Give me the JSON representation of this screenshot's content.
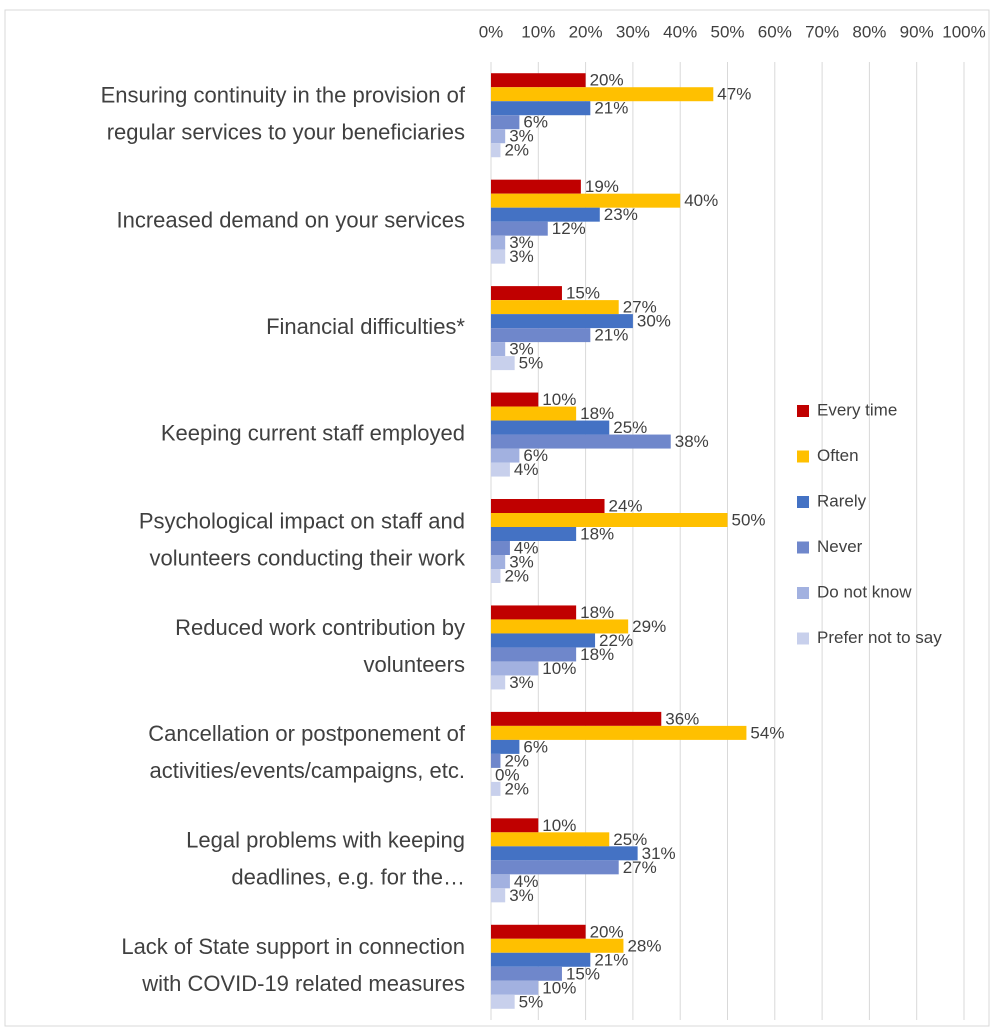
{
  "chart_data": {
    "type": "bar",
    "orientation": "horizontal",
    "categories": [
      [
        "Ensuring continuity in the provision of",
        "regular services to your beneficiaries"
      ],
      [
        "Increased demand on your services"
      ],
      [
        "Financial difficulties*"
      ],
      [
        "Keeping current staff employed"
      ],
      [
        "Psychological impact on staff and",
        "volunteers conducting their work"
      ],
      [
        "Reduced work contribution by",
        "volunteers"
      ],
      [
        "Cancellation or postponement of",
        "activities/events/campaigns, etc."
      ],
      [
        "Legal problems with keeping",
        "deadlines, e.g. for the…"
      ],
      [
        "Lack of State support in connection",
        "with COVID-19 related measures"
      ]
    ],
    "series": [
      {
        "name": "Every time",
        "color": "#c00000",
        "values": [
          20,
          19,
          15,
          10,
          24,
          18,
          36,
          10,
          20
        ],
        "value_labels": [
          "20%",
          "19%",
          "15%",
          "10%",
          "24%",
          "18%",
          "36%",
          "10%",
          "20%"
        ]
      },
      {
        "name": "Often",
        "color": "#ffc000",
        "values": [
          47,
          40,
          27,
          18,
          50,
          29,
          54,
          25,
          28
        ],
        "value_labels": [
          "47%",
          "40%",
          "27%",
          "18%",
          "50%",
          "29%",
          "54%",
          "25%",
          "28%"
        ]
      },
      {
        "name": "Rarely",
        "color": "#4472c4",
        "values": [
          21,
          23,
          30,
          25,
          18,
          22,
          6,
          31,
          21
        ],
        "value_labels": [
          "21%",
          "23%",
          "30%",
          "25%",
          "18%",
          "22%",
          "6%",
          "31%",
          "21%"
        ]
      },
      {
        "name": "Never",
        "color": "#6f87cb",
        "values": [
          6,
          12,
          21,
          38,
          4,
          18,
          2,
          27,
          15
        ],
        "value_labels": [
          "6%",
          "12%",
          "21%",
          "38%",
          "4%",
          "18%",
          "2%",
          "27%",
          "15%"
        ]
      },
      {
        "name": "Do not know",
        "color": "#a2b1e0",
        "values": [
          3,
          3,
          3,
          6,
          3,
          10,
          0,
          4,
          10
        ],
        "value_labels": [
          "3%",
          "3%",
          "3%",
          "6%",
          "3%",
          "10%",
          "0%",
          "4%",
          "10%"
        ]
      },
      {
        "name": "Prefer not to say",
        "color": "#c8d0ec",
        "values": [
          2,
          3,
          5,
          4,
          2,
          3,
          2,
          3,
          5
        ],
        "value_labels": [
          "2%",
          "3%",
          "5%",
          "4%",
          "2%",
          "3%",
          "2%",
          "3%",
          "5%"
        ]
      }
    ],
    "xlim": [
      0,
      100
    ],
    "xticks": [
      {
        "value": 0,
        "label": "0%"
      },
      {
        "value": 10,
        "label": "10%"
      },
      {
        "value": 20,
        "label": "20%"
      },
      {
        "value": 30,
        "label": "30%"
      },
      {
        "value": 40,
        "label": "40%"
      },
      {
        "value": 50,
        "label": "50%"
      },
      {
        "value": 60,
        "label": "60%"
      },
      {
        "value": 70,
        "label": "70%"
      },
      {
        "value": 80,
        "label": "80%"
      },
      {
        "value": 90,
        "label": "90%"
      },
      {
        "value": 100,
        "label": "100%"
      }
    ],
    "grid": true,
    "legend": "right"
  }
}
